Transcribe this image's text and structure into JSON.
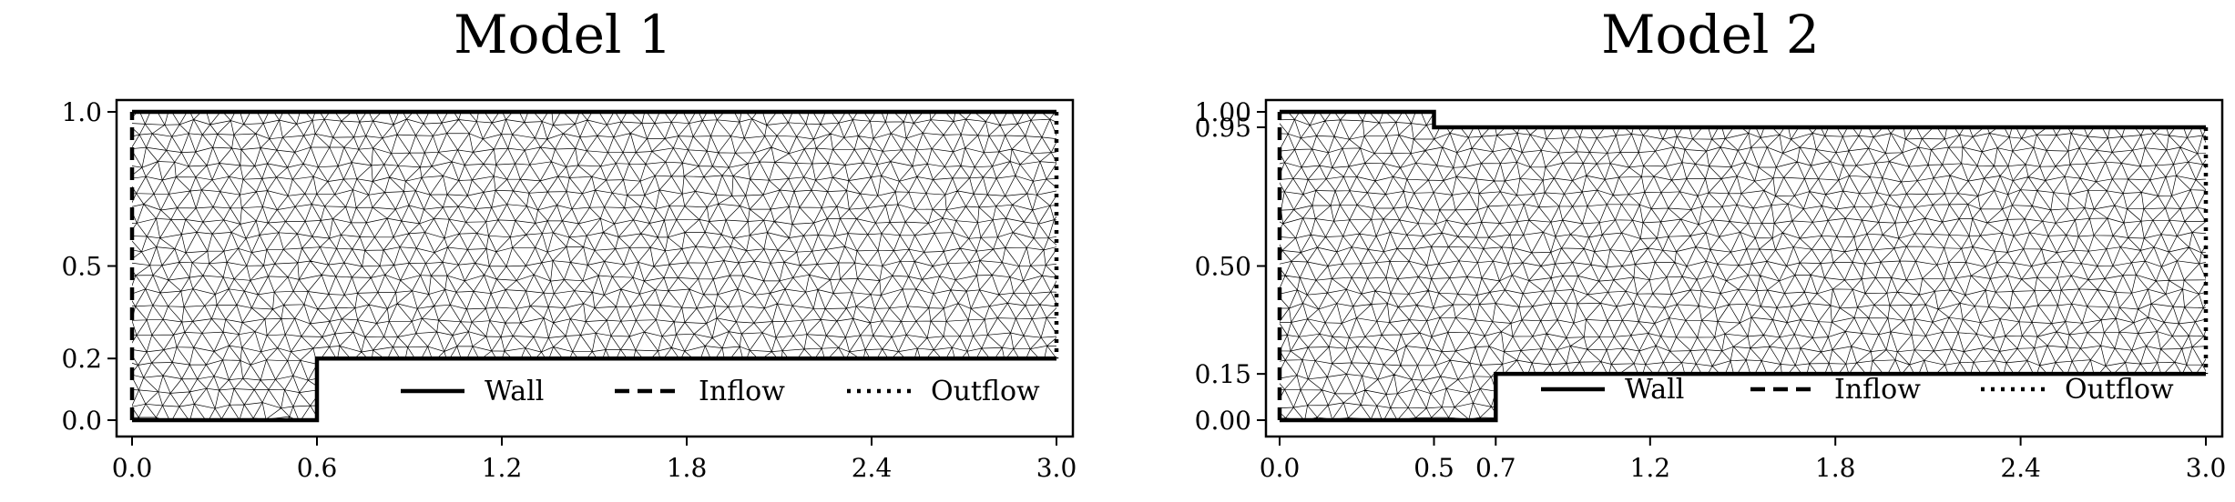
{
  "panels": [
    {
      "title": "Model 1",
      "xticks": [
        "0.0",
        "0.6",
        "1.2",
        "1.8",
        "2.4",
        "3.0"
      ],
      "yticks": [
        "0.0",
        "0.2",
        "0.5",
        "1.0"
      ],
      "xlim": [
        0,
        3
      ],
      "ylim": [
        0,
        1
      ],
      "xtick_values": [
        0,
        0.6,
        1.2,
        1.8,
        2.4,
        3.0
      ],
      "ytick_values": [
        0,
        0.2,
        0.5,
        1.0
      ],
      "geometry": {
        "top": 1.0,
        "step_x": 0.6,
        "step_y": 0.2,
        "bottom": 0.0,
        "length": 3.0
      },
      "legend": [
        {
          "label": "Wall",
          "style": "solid"
        },
        {
          "label": "Inflow",
          "style": "dashed"
        },
        {
          "label": "Outflow",
          "style": "dotted"
        }
      ]
    },
    {
      "title": "Model 2",
      "xticks": [
        "0.0",
        "0.5",
        "0.7",
        "1.2",
        "1.8",
        "2.4",
        "3.0"
      ],
      "yticks": [
        "0.00",
        "0.15",
        "0.50",
        "0.95",
        "1.00"
      ],
      "xlim": [
        0,
        3
      ],
      "ylim": [
        0,
        1
      ],
      "xtick_values": [
        0,
        0.5,
        0.7,
        1.2,
        1.8,
        2.4,
        3.0
      ],
      "ytick_values": [
        0,
        0.15,
        0.5,
        0.95,
        1.0
      ],
      "geometry": {
        "top": 1.0,
        "top_step_x": 0.5,
        "top_step_y": 0.95,
        "step_x": 0.7,
        "step_y": 0.15,
        "bottom": 0.0,
        "length": 3.0
      },
      "legend": [
        {
          "label": "Wall",
          "style": "solid"
        },
        {
          "label": "Inflow",
          "style": "dashed"
        },
        {
          "label": "Outflow",
          "style": "dotted"
        }
      ]
    }
  ]
}
